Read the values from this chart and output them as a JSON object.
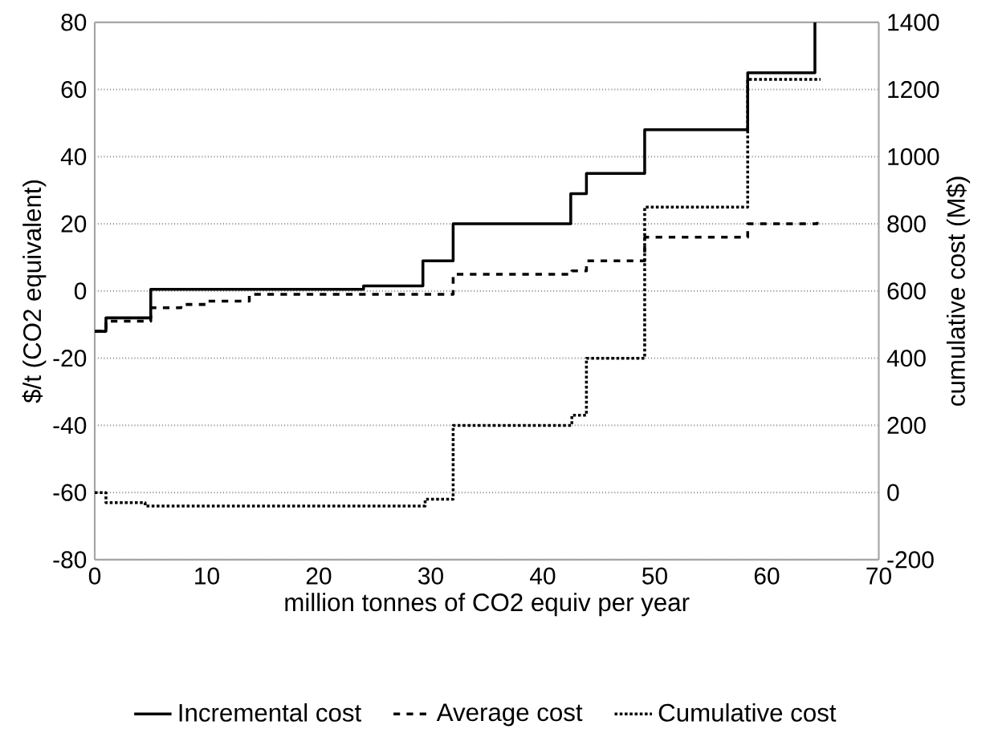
{
  "chart_data": {
    "type": "step",
    "xlabel": "million tonnes of CO2 equiv per year",
    "ylabel": "$/t (CO2 equivalent)",
    "y2label": "cumulative cost (M$)",
    "xlim": [
      0,
      70
    ],
    "xticks": [
      0,
      10,
      20,
      30,
      40,
      50,
      60,
      70
    ],
    "ylim": [
      -80,
      80
    ],
    "yticks": [
      -80,
      -60,
      -40,
      -20,
      0,
      20,
      40,
      60,
      80
    ],
    "y2lim": [
      -200,
      1400
    ],
    "y2ticks": [
      -200,
      0,
      200,
      400,
      600,
      800,
      1000,
      1200,
      1400
    ],
    "grid": "y",
    "legend": "bottom",
    "series": [
      {
        "name": "Incremental cost",
        "color": "#000000",
        "line_style": "solid",
        "x": [
          0,
          1,
          5,
          24,
          29.3,
          32,
          42.5,
          43.9,
          49.1,
          58.3,
          64.3
        ],
        "values": [
          -12,
          -8,
          0.5,
          1.5,
          9,
          20,
          29,
          35,
          48,
          65,
          80
        ]
      },
      {
        "name": "Average cost",
        "color": "#000000",
        "line_style": "dashed",
        "x": [
          0,
          1,
          5,
          7.7,
          10,
          13.8,
          32,
          42.6,
          43.9,
          49.1,
          58.3,
          64.5,
          64.8
        ],
        "values": [
          -12,
          -9,
          -5,
          -4,
          -3,
          -1,
          5,
          6,
          9,
          16,
          20,
          21,
          21
        ]
      },
      {
        "name": "Cumulative cost",
        "color": "#000000",
        "line_style": "dotted",
        "axis": "y2",
        "x": [
          0,
          1,
          4.5,
          29.5,
          32,
          42.6,
          43.9,
          49.1,
          58.3,
          64.8
        ],
        "values": [
          0,
          -30,
          -40,
          -20,
          200,
          230,
          400,
          850,
          1230,
          1230
        ]
      }
    ]
  }
}
